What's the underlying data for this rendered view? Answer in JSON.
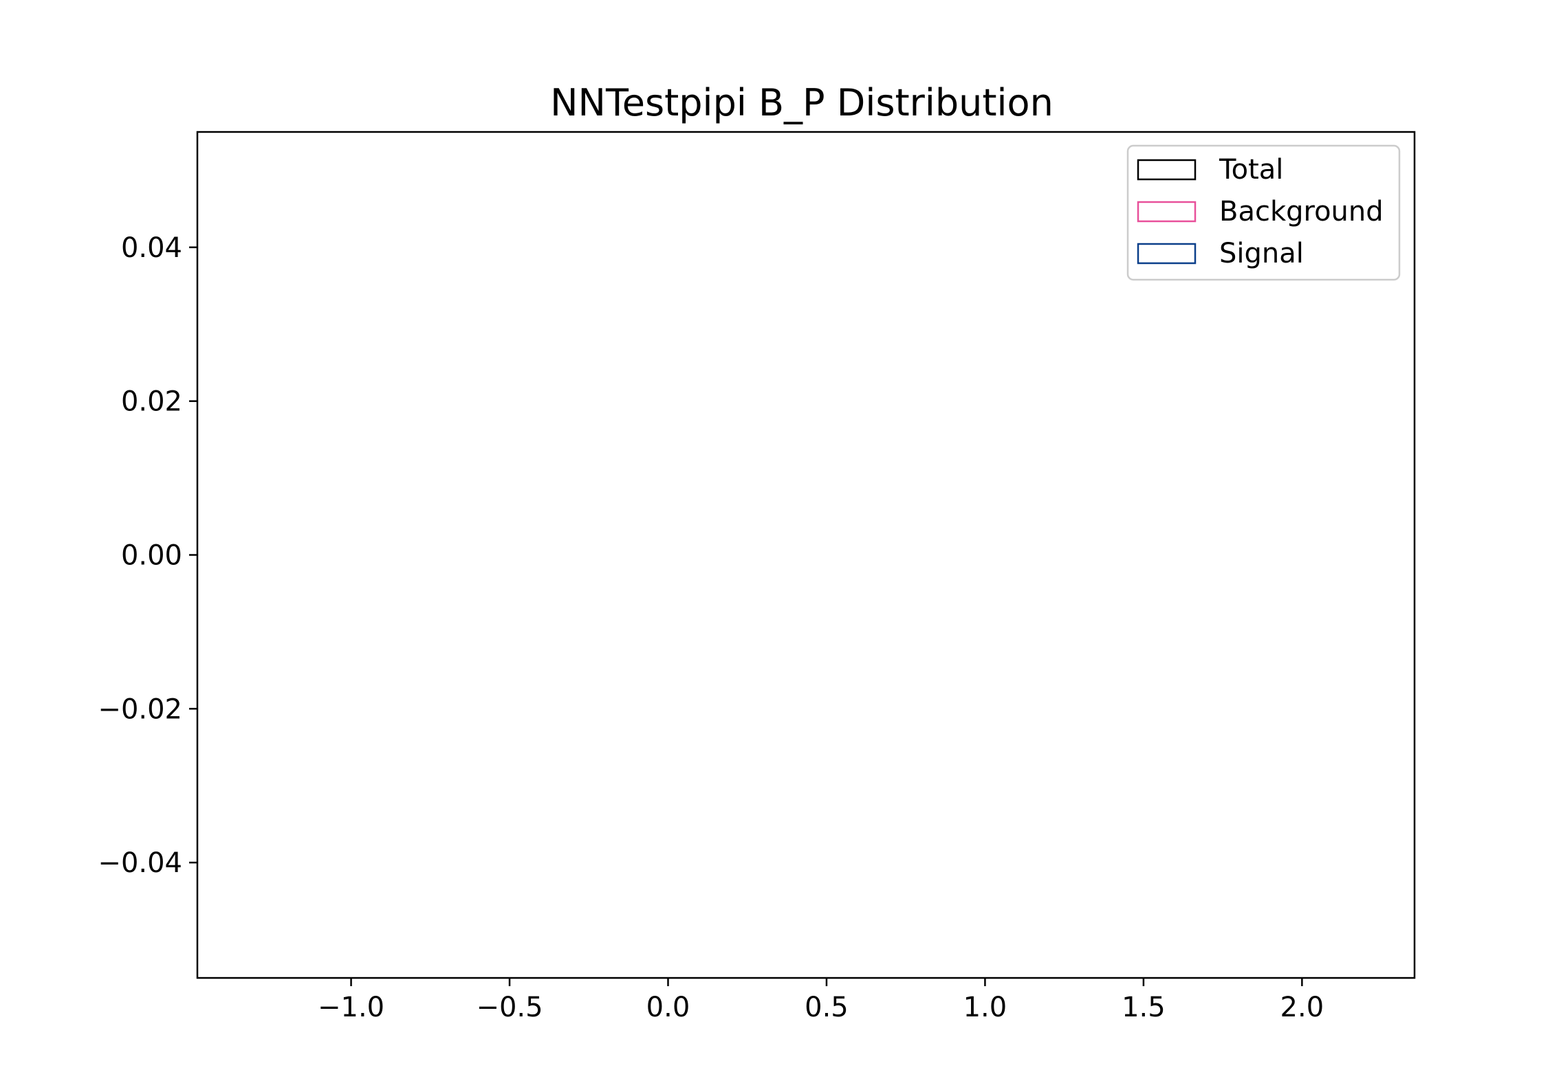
{
  "chart_data": {
    "type": "bar",
    "title": "NNTestpipi B_P Distribution",
    "xlabel": "",
    "ylabel": "",
    "xlim": [
      -1.485,
      2.355
    ],
    "ylim": [
      -0.055,
      0.055
    ],
    "xticks": [
      -1.0,
      -0.5,
      0.0,
      0.5,
      1.0,
      1.5,
      2.0
    ],
    "xtick_labels": [
      "−1.0",
      "−0.5",
      "0.0",
      "0.5",
      "1.0",
      "1.5",
      "2.0"
    ],
    "yticks": [
      0.04,
      0.02,
      0.0,
      -0.02,
      -0.04
    ],
    "ytick_labels": [
      "0.04",
      "0.02",
      "0.00",
      "−0.02",
      "−0.04"
    ],
    "grid": false,
    "legend_position": "top-right",
    "series": [
      {
        "name": "Total",
        "color": "#000000",
        "values": []
      },
      {
        "name": "Background",
        "color": "#e8509a",
        "values": []
      },
      {
        "name": "Signal",
        "color": "#0b3f8a",
        "values": []
      }
    ]
  }
}
